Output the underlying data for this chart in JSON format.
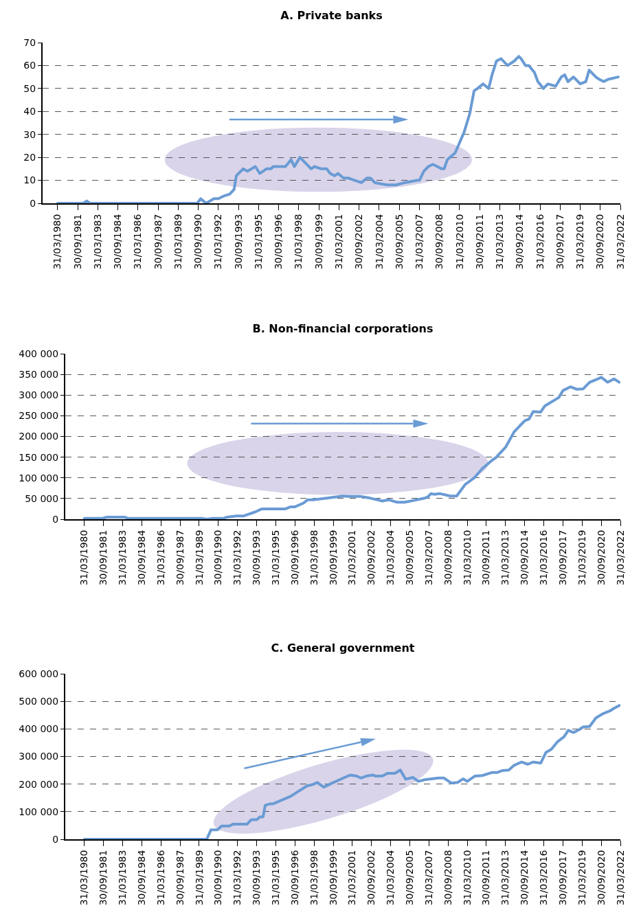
{
  "chart_data": [
    {
      "type": "line",
      "title": "A. Private banks",
      "x": [
        "1980-04",
        "1982-03",
        "1982-06",
        "1982-09",
        "1990-09",
        "1990-12",
        "1991-05",
        "1991-12",
        "1992-04",
        "1992-08",
        "1993-02",
        "1993-06",
        "1993-08",
        "1994-02",
        "1994-06",
        "1995-01",
        "1995-05",
        "1995-11",
        "1996-03",
        "1996-05",
        "1996-10",
        "1997-04",
        "1997-09",
        "1997-12",
        "1998-05",
        "1998-09",
        "1998-11",
        "1999-03",
        "1999-06",
        "1999-12",
        "2000-05",
        "2000-08",
        "2000-12",
        "2001-03",
        "2001-08",
        "2001-12",
        "2002-06",
        "2002-12",
        "2003-05",
        "2003-08",
        "2003-12",
        "2004-11",
        "2005-07",
        "2006-03",
        "2007-02",
        "2007-04",
        "2007-08",
        "2007-12",
        "2008-04",
        "2008-08",
        "2008-12",
        "2009-02",
        "2009-05",
        "2009-12",
        "2010-08",
        "2011-01",
        "2011-05",
        "2011-08",
        "2012-01",
        "2012-06",
        "2012-09",
        "2013-01",
        "2013-05",
        "2013-11",
        "2014-05",
        "2014-09",
        "2014-11",
        "2015-03",
        "2015-06",
        "2015-11",
        "2016-02",
        "2016-07",
        "2016-11",
        "2017-06",
        "2017-11",
        "2018-02",
        "2018-05",
        "2018-10",
        "2019-04",
        "2019-09",
        "2019-12",
        "2020-06",
        "2020-09",
        "2021-01",
        "2021-05",
        "2022-02"
      ],
      "series": [
        {
          "color": "#6a9bd4",
          "values": [
            0,
            0,
            1,
            0,
            0,
            2,
            0,
            2,
            2,
            3,
            4,
            6,
            12,
            15,
            14,
            16,
            13,
            15,
            15,
            16,
            16,
            16,
            19,
            16,
            20,
            18,
            17,
            15,
            16,
            15,
            15,
            13,
            12,
            13,
            11,
            11,
            10,
            9,
            11,
            11,
            9,
            8,
            8,
            9,
            10,
            10,
            14,
            16,
            17,
            16,
            15,
            15,
            19,
            22,
            31,
            39,
            49,
            50,
            52,
            50,
            56,
            62,
            63,
            60,
            62,
            64,
            63,
            60,
            60,
            57,
            53,
            50,
            52,
            51,
            55,
            56,
            53,
            55,
            52,
            53,
            58,
            55,
            54,
            53,
            54,
            55
          ]
        }
      ],
      "xlim": [
        "1979-02-15",
        "2022-03-31"
      ],
      "xticks": [
        {
          "value": "1980-03-31",
          "label": "31/03/1980"
        },
        {
          "value": "1981-09-30",
          "label": "30/09/1981"
        },
        {
          "value": "1983-03-31",
          "label": "31/03/1983"
        },
        {
          "value": "1984-09-30",
          "label": "30/09/1984"
        },
        {
          "value": "1986-03-31",
          "label": "31/03/1986"
        },
        {
          "value": "1987-09-30",
          "label": "30/09/1987"
        },
        {
          "value": "1989-03-31",
          "label": "31/03/1989"
        },
        {
          "value": "1990-09-30",
          "label": "30/09/1990"
        },
        {
          "value": "1992-03-31",
          "label": "31/03/1992"
        },
        {
          "value": "1993-09-30",
          "label": "30/09/1993"
        },
        {
          "value": "1995-03-31",
          "label": "31/03/1995"
        },
        {
          "value": "1996-09-30",
          "label": "30/09/1996"
        },
        {
          "value": "1998-03-31",
          "label": "31/03/1998"
        },
        {
          "value": "1999-09-30",
          "label": "30/09/1999"
        },
        {
          "value": "2001-03-31",
          "label": "31/03/2001"
        },
        {
          "value": "2002-09-30",
          "label": "30/09/2002"
        },
        {
          "value": "2004-03-31",
          "label": "31/03/2004"
        },
        {
          "value": "2005-09-30",
          "label": "30/09/2005"
        },
        {
          "value": "2007-03-31",
          "label": "31/03/2007"
        },
        {
          "value": "2008-09-30",
          "label": "30/09/2008"
        },
        {
          "value": "2010-03-31",
          "label": "31/03/2010"
        },
        {
          "value": "2011-09-30",
          "label": "30/09/2011"
        },
        {
          "value": "2013-03-31",
          "label": "31/03/2013"
        },
        {
          "value": "2014-09-30",
          "label": "30/09/2014"
        },
        {
          "value": "2016-03-31",
          "label": "31/03/2016"
        },
        {
          "value": "2017-09-30",
          "label": "30/09/2017"
        },
        {
          "value": "2019-03-31",
          "label": "31/03/2019"
        },
        {
          "value": "2020-09-30",
          "label": "30/09/2020"
        },
        {
          "value": "2022-03-31",
          "label": "31/03/2022"
        }
      ],
      "ylim": [
        0,
        70
      ],
      "yticks": [
        0,
        10,
        20,
        30,
        40,
        50,
        60,
        70
      ],
      "grid": "y"
    },
    {
      "type": "line",
      "title": "B. Non-financial corporations",
      "x": [
        "1980-04",
        "1981-09",
        "1982-01",
        "1983-06",
        "1983-09",
        "1989-06",
        "1989-12",
        "1990-04",
        "1991-03",
        "1991-06",
        "1992-03",
        "1992-10",
        "1993-01",
        "1993-08",
        "1994-03",
        "1996-01",
        "1996-06",
        "1996-10",
        "1997-06",
        "1997-10",
        "1998-03",
        "1999-04",
        "2000-07",
        "2000-12",
        "2001-12",
        "2002-07",
        "2003-03",
        "2003-08",
        "2004-02",
        "2004-10",
        "2005-05",
        "2006-01",
        "2006-12",
        "2007-03",
        "2007-06",
        "2007-09",
        "2008-02",
        "2008-12",
        "2009-06",
        "2010-02",
        "2010-11",
        "2011-06",
        "2012-04",
        "2012-07",
        "2013-04",
        "2013-12",
        "2014-10",
        "2015-02",
        "2015-06",
        "2016-01",
        "2016-05",
        "2017-06",
        "2017-10",
        "2018-05",
        "2018-11",
        "2019-05",
        "2019-11",
        "2020-05",
        "2020-10",
        "2021-04",
        "2021-10",
        "2022-03"
      ],
      "series": [
        {
          "color": "#6a9bd4",
          "values": [
            2000,
            2000,
            5000,
            5000,
            2000,
            2000,
            0,
            2000,
            2000,
            5000,
            8000,
            8000,
            11000,
            17000,
            25000,
            25000,
            30000,
            30000,
            39000,
            47000,
            47000,
            51000,
            56000,
            55000,
            55000,
            52000,
            47000,
            44000,
            47000,
            41000,
            41000,
            45000,
            51000,
            54000,
            62000,
            60000,
            62000,
            56000,
            56000,
            84000,
            101000,
            122000,
            144000,
            149000,
            174000,
            211000,
            238000,
            242000,
            260000,
            259000,
            274000,
            294000,
            311000,
            320000,
            314000,
            315000,
            331000,
            337000,
            343000,
            331000,
            339000,
            331000
          ]
        }
      ],
      "xlim": [
        "1978-10-01",
        "2022-03-31"
      ],
      "xticks": [
        {
          "value": "1980-03-31",
          "label": "31/03/1980"
        },
        {
          "value": "1981-09-30",
          "label": "30/09/1981"
        },
        {
          "value": "1983-03-31",
          "label": "31/03/1983"
        },
        {
          "value": "1984-09-30",
          "label": "30/09/1984"
        },
        {
          "value": "1986-03-31",
          "label": "31/03/1986"
        },
        {
          "value": "1987-09-30",
          "label": "30/09/1987"
        },
        {
          "value": "1989-03-31",
          "label": "31/03/1989"
        },
        {
          "value": "1990-09-30",
          "label": "30/09/1990"
        },
        {
          "value": "1992-03-31",
          "label": "31/03/1992"
        },
        {
          "value": "1993-09-30",
          "label": "30/09/1993"
        },
        {
          "value": "1995-03-31",
          "label": "31/03/1995"
        },
        {
          "value": "1996-09-30",
          "label": "30/09/1996"
        },
        {
          "value": "1998-03-31",
          "label": "31/03/1998"
        },
        {
          "value": "1999-09-30",
          "label": "30/09/1999"
        },
        {
          "value": "2001-03-31",
          "label": "31/03/2001"
        },
        {
          "value": "2002-09-30",
          "label": "30/09/2002"
        },
        {
          "value": "2004-03-31",
          "label": "31/03/2004"
        },
        {
          "value": "2005-09-30",
          "label": "30/09/2005"
        },
        {
          "value": "2007-03-31",
          "label": "31/03/2007"
        },
        {
          "value": "2008-09-30",
          "label": "30/09/2008"
        },
        {
          "value": "2010-03-31",
          "label": "31/03/2010"
        },
        {
          "value": "2011-09-30",
          "label": "30/09/2011"
        },
        {
          "value": "2013-03-31",
          "label": "31/03/2013"
        },
        {
          "value": "2014-09-30",
          "label": "30/09/2014"
        },
        {
          "value": "2016-03-31",
          "label": "31/03/2016"
        },
        {
          "value": "2017-09-30",
          "label": "30/09/2017"
        },
        {
          "value": "2019-03-31",
          "label": "31/03/2019"
        },
        {
          "value": "2020-09-30",
          "label": "30/09/2020"
        },
        {
          "value": "2022-03-31",
          "label": "31/03/2022"
        }
      ],
      "ylim": [
        0,
        400000
      ],
      "yticks": [
        {
          "value": 0,
          "label": "0"
        },
        {
          "value": 50000,
          "label": "50 000"
        },
        {
          "value": 100000,
          "label": "100 000"
        },
        {
          "value": 150000,
          "label": "150 000"
        },
        {
          "value": 200000,
          "label": "200 000"
        },
        {
          "value": 250000,
          "label": "250 000"
        },
        {
          "value": 300000,
          "label": "300 000"
        },
        {
          "value": 350000,
          "label": "350 000"
        },
        {
          "value": 400000,
          "label": "400 000"
        }
      ],
      "grid": "y"
    },
    {
      "type": "line",
      "title": "C. General government",
      "x": [
        "1980-04",
        "1989-11",
        "1990-03",
        "1990-09",
        "1991-01",
        "1991-08",
        "1991-12",
        "1993-01",
        "1993-05",
        "1993-10",
        "1994-01",
        "1994-04",
        "1994-06",
        "1994-10",
        "1995-01",
        "1996-06",
        "1996-10",
        "1997-09",
        "1998-03",
        "1998-07",
        "1999-01",
        "1999-08",
        "2000-04",
        "2001-02",
        "2001-08",
        "2001-12",
        "2002-05",
        "2002-11",
        "2003-02",
        "2003-08",
        "2004-01",
        "2004-08",
        "2005-01",
        "2005-06",
        "2006-01",
        "2006-06",
        "2006-12",
        "2008-01",
        "2008-06",
        "2009-01",
        "2009-07",
        "2009-12",
        "2010-04",
        "2010-11",
        "2011-06",
        "2012-03",
        "2012-08",
        "2013-01",
        "2013-07",
        "2013-12",
        "2014-07",
        "2015-01",
        "2015-06",
        "2016-01",
        "2016-06",
        "2016-11",
        "2017-05",
        "2017-11",
        "2018-03",
        "2018-08",
        "2019-01",
        "2019-05",
        "2019-11",
        "2020-05",
        "2020-12",
        "2021-06",
        "2021-10",
        "2022-03"
      ],
      "series": [
        {
          "color": "#6a9bd4",
          "values": [
            0,
            0,
            34000,
            34000,
            48000,
            48000,
            55000,
            55000,
            71000,
            71000,
            81000,
            81000,
            123000,
            128000,
            128000,
            156000,
            166000,
            193000,
            199000,
            206000,
            189000,
            202000,
            216000,
            233000,
            229000,
            222000,
            229000,
            233000,
            229000,
            229000,
            239000,
            239000,
            251000,
            218000,
            224000,
            210000,
            216000,
            222000,
            222000,
            204000,
            206000,
            219000,
            210000,
            229000,
            231000,
            242000,
            242000,
            249000,
            251000,
            268000,
            280000,
            272000,
            280000,
            276000,
            315000,
            326000,
            354000,
            372000,
            395000,
            387000,
            397000,
            407000,
            409000,
            440000,
            456000,
            465000,
            475000,
            485000
          ]
        }
      ],
      "xlim": [
        "1978-10-01",
        "2022-03-31"
      ],
      "xticks": [
        {
          "value": "1980-03-31",
          "label": "31/03/1980"
        },
        {
          "value": "1981-09-30",
          "label": "30/09/1981"
        },
        {
          "value": "1983-03-31",
          "label": "31/03/1983"
        },
        {
          "value": "1984-09-30",
          "label": "30/09/1984"
        },
        {
          "value": "1986-03-31",
          "label": "31/03/1986"
        },
        {
          "value": "1987-09-30",
          "label": "30/09/1987"
        },
        {
          "value": "1989-03-31",
          "label": "31/03/1989"
        },
        {
          "value": "1990-09-30",
          "label": "30/09/1990"
        },
        {
          "value": "1992-03-31",
          "label": "31/03/1992"
        },
        {
          "value": "1993-09-30",
          "label": "30/09/1993"
        },
        {
          "value": "1995-03-31",
          "label": "31/03/1995"
        },
        {
          "value": "1996-09-30",
          "label": "30/09/1996"
        },
        {
          "value": "1998-03-31",
          "label": "31/03/1998"
        },
        {
          "value": "1999-09-30",
          "label": "30/09/1999"
        },
        {
          "value": "2001-03-31",
          "label": "31/03/2001"
        },
        {
          "value": "2002-09-30",
          "label": "30/09/2002"
        },
        {
          "value": "2004-03-31",
          "label": "31/03/2004"
        },
        {
          "value": "2005-09-30",
          "label": "30/09/2005"
        },
        {
          "value": "2007-03-31",
          "label": "31/03/2007"
        },
        {
          "value": "2008-09-30",
          "label": "30/09/2008"
        },
        {
          "value": "2010-03-31",
          "label": "31/03/2010"
        },
        {
          "value": "2011-09-30",
          "label": "30/09/2011"
        },
        {
          "value": "2013-03-31",
          "label": "31/03/2013"
        },
        {
          "value": "2014-09-30",
          "label": "30/09/2014"
        },
        {
          "value": "2016-03-31",
          "label": "31/03/2016"
        },
        {
          "value": "2017-09-30",
          "label": "30/09/2017"
        },
        {
          "value": "2019-03-31",
          "label": "31/03/2019"
        },
        {
          "value": "2020-09-30",
          "label": "30/09/2020"
        },
        {
          "value": "2022-03-31",
          "label": "31/03/2022"
        }
      ],
      "ylim": [
        0,
        600000
      ],
      "yticks": [
        {
          "value": 0,
          "label": "0"
        },
        {
          "value": 100000,
          "label": "100 000"
        },
        {
          "value": 200000,
          "label": "200 000"
        },
        {
          "value": 300000,
          "label": "300 000"
        },
        {
          "value": 400000,
          "label": "400 000"
        },
        {
          "value": 500000,
          "label": "500 000"
        },
        {
          "value": 600000,
          "label": "600 000"
        }
      ],
      "grid": "y"
    }
  ]
}
